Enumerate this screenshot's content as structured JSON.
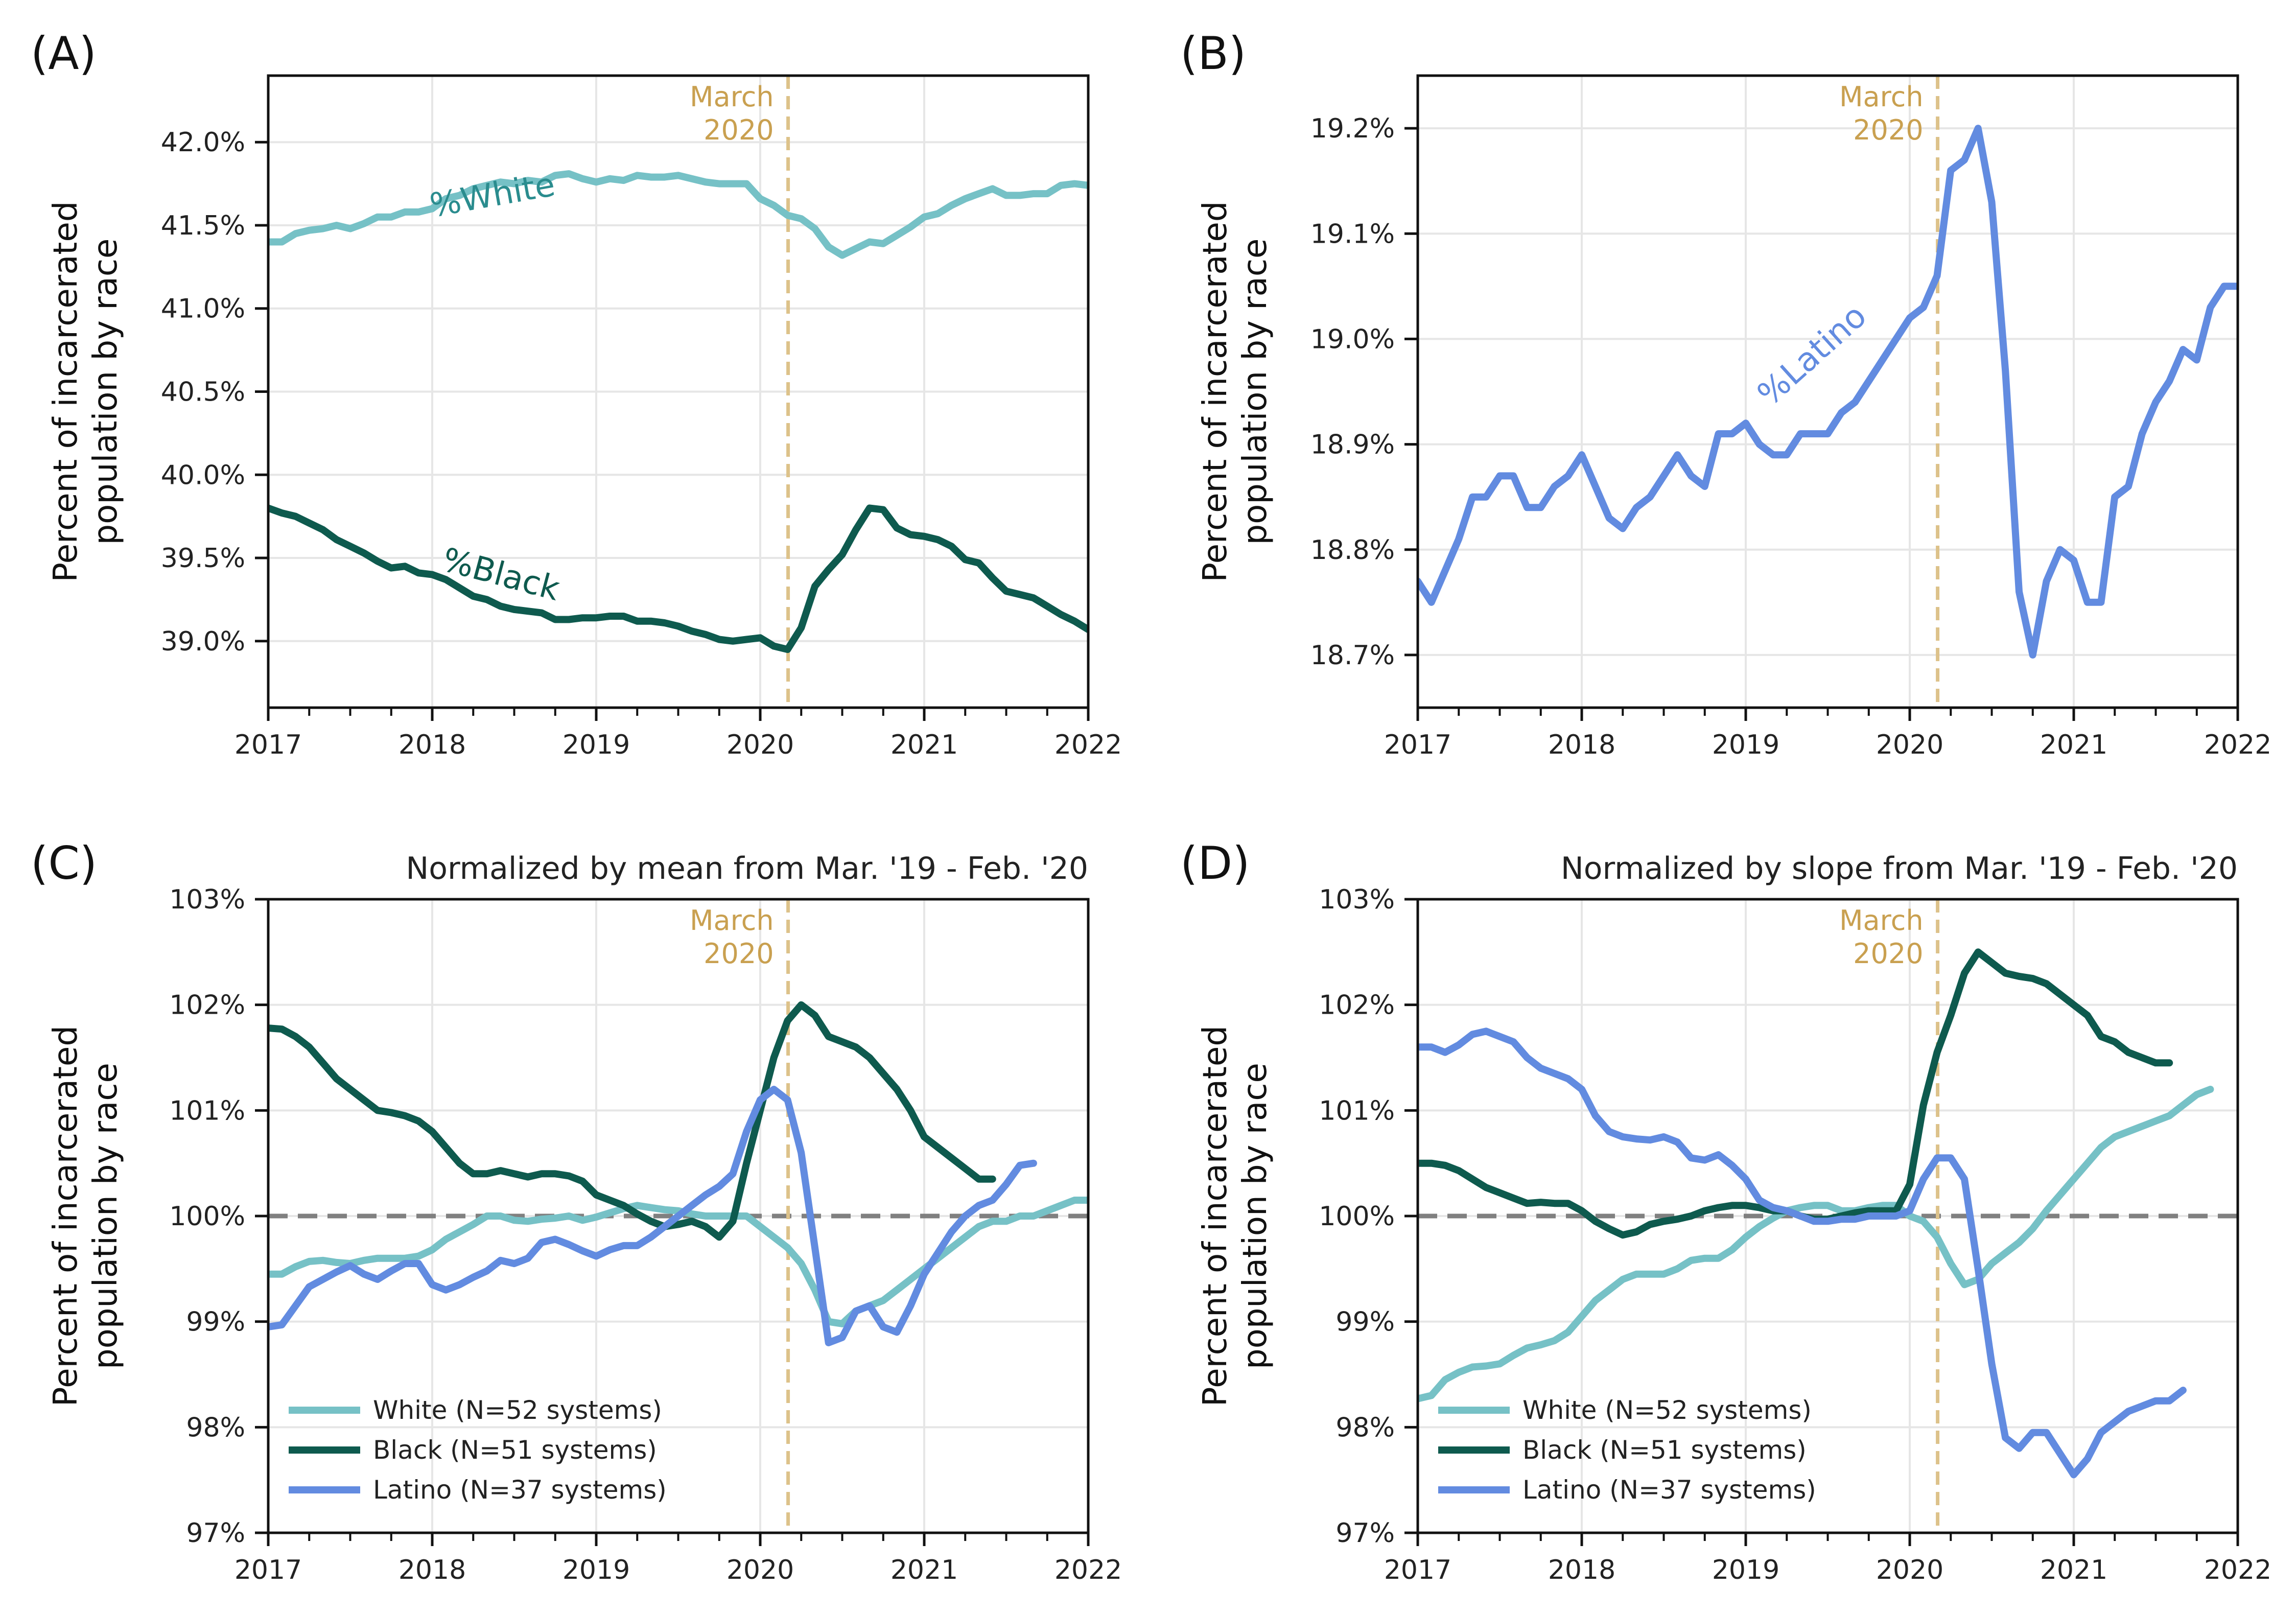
{
  "colors": {
    "white": "#76c1c6",
    "black": "#0e5a4e",
    "latino": "#628be0",
    "march": "#ddc28a",
    "march_text": "#c9a050",
    "white_label": "#2a8c8e",
    "grid": "#e6e6e6",
    "baseline": "#808080"
  },
  "chart_data": [
    {
      "type": "line",
      "panel_label": "(A)",
      "title": "",
      "xlabel": "",
      "ylabel": "Percent of incarcerated population by race",
      "xlim": [
        2017,
        2022
      ],
      "ylim": [
        38.6,
        42.4
      ],
      "x_ticks": [
        "2017",
        "2018",
        "2019",
        "2020",
        "2021",
        "2022"
      ],
      "y_ticks": [
        "39.0%",
        "39.5%",
        "40.0%",
        "40.5%",
        "41.0%",
        "41.5%",
        "42.0%"
      ],
      "y_tick_values": [
        39.0,
        39.5,
        40.0,
        40.5,
        41.0,
        41.5,
        42.0
      ],
      "vline": {
        "x": 2020.17,
        "label_line1": "March",
        "label_line2": "2020"
      },
      "annotations": [
        {
          "text": "%White",
          "x": 2018.0,
          "y": 41.55,
          "angle": -10,
          "color": "white_label"
        },
        {
          "text": "%Black",
          "x": 2018.05,
          "y": 39.43,
          "angle": 15,
          "color": "black"
        }
      ],
      "series": [
        {
          "name": "",
          "color": "white",
          "x_start": 2017.0,
          "x_step": 0.08333,
          "values": [
            41.4,
            41.4,
            41.45,
            41.47,
            41.48,
            41.5,
            41.48,
            41.51,
            41.55,
            41.55,
            41.58,
            41.58,
            41.6,
            41.66,
            41.68,
            41.72,
            41.74,
            41.76,
            41.75,
            41.77,
            41.76,
            41.8,
            41.81,
            41.78,
            41.76,
            41.78,
            41.77,
            41.8,
            41.79,
            41.79,
            41.8,
            41.78,
            41.76,
            41.75,
            41.75,
            41.75,
            41.66,
            41.62,
            41.56,
            41.54,
            41.48,
            41.37,
            41.32,
            41.36,
            41.4,
            41.39,
            41.44,
            41.49,
            41.55,
            41.57,
            41.62,
            41.66,
            41.69,
            41.72,
            41.68,
            41.68,
            41.69,
            41.69,
            41.74,
            41.75,
            41.74
          ]
        },
        {
          "name": "",
          "color": "black",
          "x_start": 2017.0,
          "x_step": 0.08333,
          "values": [
            39.8,
            39.77,
            39.75,
            39.71,
            39.67,
            39.61,
            39.57,
            39.53,
            39.48,
            39.44,
            39.45,
            39.41,
            39.4,
            39.37,
            39.32,
            39.27,
            39.25,
            39.21,
            39.19,
            39.18,
            39.17,
            39.13,
            39.13,
            39.14,
            39.14,
            39.15,
            39.15,
            39.12,
            39.12,
            39.11,
            39.09,
            39.06,
            39.04,
            39.01,
            39.0,
            39.01,
            39.02,
            38.97,
            38.95,
            39.08,
            39.33,
            39.43,
            39.52,
            39.67,
            39.8,
            39.79,
            39.68,
            39.64,
            39.63,
            39.61,
            39.57,
            39.49,
            39.47,
            39.38,
            39.3,
            39.28,
            39.26,
            39.21,
            39.16,
            39.12,
            39.07
          ]
        }
      ]
    },
    {
      "type": "line",
      "panel_label": "(B)",
      "title": "",
      "xlabel": "",
      "ylabel": "Percent of incarcerated population by race",
      "xlim": [
        2017,
        2022
      ],
      "ylim": [
        18.65,
        19.25
      ],
      "x_ticks": [
        "2017",
        "2018",
        "2019",
        "2020",
        "2021",
        "2022"
      ],
      "y_ticks": [
        "18.7%",
        "18.8%",
        "18.9%",
        "19.0%",
        "19.1%",
        "19.2%"
      ],
      "y_tick_values": [
        18.7,
        18.8,
        18.9,
        19.0,
        19.1,
        19.2
      ],
      "vline": {
        "x": 2020.17,
        "label_line1": "March",
        "label_line2": "2020"
      },
      "annotations": [
        {
          "text": "%Latino",
          "x": 2019.15,
          "y": 18.935,
          "angle": -42,
          "color": "latino"
        }
      ],
      "series": [
        {
          "name": "",
          "color": "latino",
          "x_start": 2017.0,
          "x_step": 0.08333,
          "values": [
            18.77,
            18.75,
            18.78,
            18.81,
            18.85,
            18.85,
            18.87,
            18.87,
            18.84,
            18.84,
            18.86,
            18.87,
            18.89,
            18.86,
            18.83,
            18.82,
            18.84,
            18.85,
            18.87,
            18.89,
            18.87,
            18.86,
            18.91,
            18.91,
            18.92,
            18.9,
            18.89,
            18.89,
            18.91,
            18.91,
            18.91,
            18.93,
            18.94,
            18.96,
            18.98,
            19.0,
            19.02,
            19.03,
            19.06,
            19.16,
            19.17,
            19.2,
            19.13,
            18.97,
            18.76,
            18.7,
            18.77,
            18.8,
            18.79,
            18.75,
            18.75,
            18.85,
            18.86,
            18.91,
            18.94,
            18.96,
            18.99,
            18.98,
            19.03,
            19.05,
            19.05
          ]
        }
      ]
    },
    {
      "type": "line",
      "panel_label": "(C)",
      "title": "Normalized by mean from Mar. '19 - Feb. '20",
      "xlabel": "",
      "ylabel": "Percent of incarcerated population by race",
      "xlim": [
        2017,
        2022
      ],
      "ylim": [
        97,
        103
      ],
      "x_ticks": [
        "2017",
        "2018",
        "2019",
        "2020",
        "2021",
        "2022"
      ],
      "y_ticks": [
        "97%",
        "98%",
        "99%",
        "100%",
        "101%",
        "102%",
        "103%"
      ],
      "y_tick_values": [
        97,
        98,
        99,
        100,
        101,
        102,
        103
      ],
      "vline": {
        "x": 2020.17,
        "label_line1": "March",
        "label_line2": "2020"
      },
      "hline": 100,
      "legend": "lower-left",
      "series": [
        {
          "name": "White (N=52 systems)",
          "color": "white",
          "x_start": 2017.0,
          "x_step": 0.08333,
          "values": [
            99.45,
            99.45,
            99.52,
            99.57,
            99.58,
            99.56,
            99.55,
            99.58,
            99.6,
            99.6,
            99.6,
            99.62,
            99.68,
            99.78,
            99.85,
            99.92,
            100.0,
            100.0,
            99.96,
            99.95,
            99.97,
            99.98,
            100.0,
            99.96,
            99.99,
            100.03,
            100.07,
            100.1,
            100.08,
            100.06,
            100.05,
            100.02,
            100.0,
            100.0,
            100.0,
            100.0,
            99.9,
            99.8,
            99.7,
            99.55,
            99.3,
            99.0,
            98.98,
            99.1,
            99.15,
            99.2,
            99.3,
            99.4,
            99.5,
            99.6,
            99.7,
            99.8,
            99.9,
            99.95,
            99.95,
            100.0,
            100.0,
            100.05,
            100.1,
            100.15,
            100.15
          ]
        },
        {
          "name": "Black (N=51 systems)",
          "color": "black",
          "x_start": 2017.0,
          "x_step": 0.08333,
          "values": [
            101.78,
            101.77,
            101.7,
            101.6,
            101.45,
            101.3,
            101.2,
            101.1,
            101.0,
            100.98,
            100.95,
            100.9,
            100.8,
            100.65,
            100.5,
            100.4,
            100.4,
            100.43,
            100.4,
            100.37,
            100.4,
            100.4,
            100.38,
            100.33,
            100.2,
            100.15,
            100.1,
            100.02,
            99.95,
            99.9,
            99.92,
            99.95,
            99.9,
            99.8,
            99.95,
            100.5,
            101.0,
            101.5,
            101.85,
            102.0,
            101.9,
            101.7,
            101.65,
            101.6,
            101.5,
            101.35,
            101.2,
            101.0,
            100.75,
            100.65,
            100.55,
            100.45,
            100.35,
            100.35
          ]
        },
        {
          "name": "Latino (N=37 systems)",
          "color": "latino",
          "x_start": 2017.0,
          "x_step": 0.08333,
          "values": [
            98.95,
            98.97,
            99.15,
            99.33,
            99.4,
            99.47,
            99.53,
            99.45,
            99.4,
            99.48,
            99.55,
            99.55,
            99.35,
            99.3,
            99.35,
            99.42,
            99.48,
            99.58,
            99.55,
            99.6,
            99.75,
            99.78,
            99.73,
            99.67,
            99.62,
            99.68,
            99.72,
            99.72,
            99.8,
            99.9,
            100.0,
            100.1,
            100.2,
            100.28,
            100.4,
            100.8,
            101.1,
            101.2,
            101.1,
            100.6,
            99.7,
            98.8,
            98.85,
            99.1,
            99.15,
            98.95,
            98.9,
            99.15,
            99.45,
            99.65,
            99.85,
            100.0,
            100.1,
            100.15,
            100.3,
            100.48,
            100.5
          ]
        }
      ]
    },
    {
      "type": "line",
      "panel_label": "(D)",
      "title": "Normalized by slope from Mar. '19 - Feb. '20",
      "xlabel": "",
      "ylabel": "Percent of incarcerated population by race",
      "xlim": [
        2017,
        2022
      ],
      "ylim": [
        97,
        103
      ],
      "x_ticks": [
        "2017",
        "2018",
        "2019",
        "2020",
        "2021",
        "2022"
      ],
      "y_ticks": [
        "97%",
        "98%",
        "99%",
        "100%",
        "101%",
        "102%",
        "103%"
      ],
      "y_tick_values": [
        97,
        98,
        99,
        100,
        101,
        102,
        103
      ],
      "vline": {
        "x": 2020.17,
        "label_line1": "March",
        "label_line2": "2020"
      },
      "hline": 100,
      "legend": "lower-left",
      "series": [
        {
          "name": "White (N=52 systems)",
          "color": "white",
          "x_start": 2017.0,
          "x_step": 0.08333,
          "values": [
            98.27,
            98.3,
            98.45,
            98.52,
            98.57,
            98.58,
            98.6,
            98.68,
            98.75,
            98.78,
            98.82,
            98.9,
            99.05,
            99.2,
            99.3,
            99.4,
            99.45,
            99.45,
            99.45,
            99.5,
            99.58,
            99.6,
            99.6,
            99.68,
            99.8,
            99.9,
            99.98,
            100.05,
            100.08,
            100.1,
            100.1,
            100.05,
            100.05,
            100.08,
            100.1,
            100.1,
            100.0,
            99.95,
            99.8,
            99.55,
            99.35,
            99.4,
            99.55,
            99.65,
            99.75,
            99.88,
            100.05,
            100.2,
            100.35,
            100.5,
            100.65,
            100.75,
            100.8,
            100.85,
            100.9,
            100.95,
            101.05,
            101.15,
            101.2
          ]
        },
        {
          "name": "Black (N=51 systems)",
          "color": "black",
          "x_start": 2017.0,
          "x_step": 0.08333,
          "values": [
            100.5,
            100.5,
            100.48,
            100.43,
            100.35,
            100.27,
            100.22,
            100.17,
            100.12,
            100.13,
            100.12,
            100.12,
            100.05,
            99.95,
            99.88,
            99.82,
            99.85,
            99.92,
            99.95,
            99.97,
            100.0,
            100.05,
            100.08,
            100.1,
            100.1,
            100.08,
            100.05,
            100.05,
            100.0,
            99.97,
            99.97,
            100.0,
            100.03,
            100.05,
            100.05,
            100.05,
            100.3,
            101.05,
            101.55,
            101.9,
            102.3,
            102.5,
            102.4,
            102.3,
            102.27,
            102.25,
            102.2,
            102.1,
            102.0,
            101.9,
            101.7,
            101.65,
            101.55,
            101.5,
            101.45,
            101.45
          ]
        },
        {
          "name": "Latino (N=37 systems)",
          "color": "latino",
          "x_start": 2017.0,
          "x_step": 0.08333,
          "values": [
            101.6,
            101.6,
            101.55,
            101.62,
            101.72,
            101.75,
            101.7,
            101.65,
            101.5,
            101.4,
            101.35,
            101.3,
            101.2,
            100.95,
            100.8,
            100.75,
            100.73,
            100.72,
            100.75,
            100.7,
            100.55,
            100.53,
            100.58,
            100.48,
            100.35,
            100.15,
            100.08,
            100.05,
            100.0,
            99.95,
            99.95,
            99.97,
            99.97,
            100.0,
            100.0,
            100.0,
            100.05,
            100.35,
            100.55,
            100.55,
            100.35,
            99.5,
            98.6,
            97.9,
            97.8,
            97.95,
            97.95,
            97.75,
            97.55,
            97.7,
            97.95,
            98.05,
            98.15,
            98.2,
            98.25,
            98.25,
            98.35
          ]
        }
      ]
    }
  ]
}
